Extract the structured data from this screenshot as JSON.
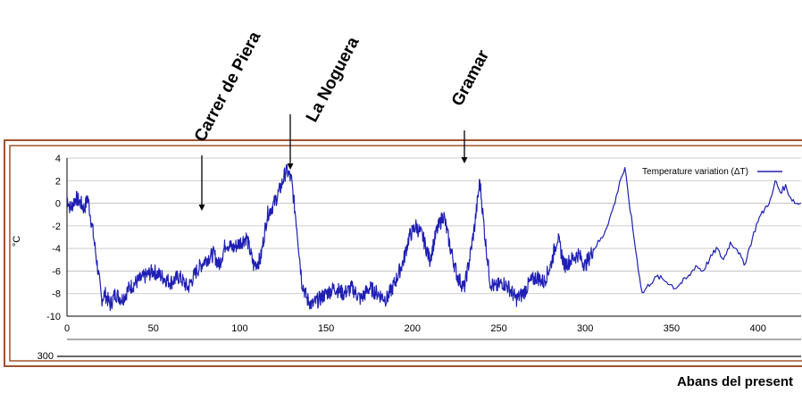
{
  "chart_data": {
    "type": "line",
    "ylabel": "°C",
    "xlabel": "Abans del present",
    "xlim": [
      0,
      425
    ],
    "ylim": [
      -10,
      4
    ],
    "xticks": [
      "0",
      "50",
      "100",
      "150",
      "200",
      "250",
      "300",
      "350",
      "400"
    ],
    "yticks": [
      "4",
      "2",
      "0",
      "-2",
      "-4",
      "-6",
      "-8",
      "-10"
    ],
    "second_panel_tick": "300",
    "grid": true,
    "legend_position": "top-right",
    "series": [
      {
        "name": "Temperature variation (ΔT)",
        "color": "#1f1fb4",
        "x": [
          0,
          2,
          5,
          8,
          10,
          12,
          15,
          18,
          20,
          22,
          25,
          28,
          32,
          36,
          40,
          45,
          50,
          55,
          60,
          65,
          70,
          75,
          80,
          85,
          88,
          92,
          96,
          100,
          104,
          108,
          112,
          116,
          120,
          124,
          127,
          130,
          133,
          136,
          139,
          142,
          146,
          150,
          155,
          160,
          165,
          170,
          175,
          180,
          185,
          190,
          195,
          198,
          202,
          206,
          210,
          214,
          218,
          222,
          226,
          230,
          233,
          236,
          239,
          242,
          245,
          248,
          252,
          256,
          260,
          264,
          268,
          272,
          276,
          280,
          284,
          288,
          292,
          296,
          300,
          305,
          310,
          315,
          318,
          320,
          323,
          326,
          330,
          333,
          338,
          342,
          348,
          352,
          356,
          360,
          364,
          368,
          372,
          376,
          380,
          384,
          388,
          392,
          396,
          400,
          404,
          408,
          410,
          413,
          416,
          419,
          422,
          425
        ],
        "y": [
          0.5,
          -0.5,
          0.5,
          0.0,
          -0.5,
          0.5,
          -2.5,
          -6.0,
          -8.5,
          -8.0,
          -9.0,
          -8.0,
          -8.5,
          -7.5,
          -7.0,
          -6.5,
          -6.0,
          -6.5,
          -7.0,
          -6.5,
          -7.5,
          -6.0,
          -5.0,
          -4.5,
          -5.5,
          -3.5,
          -4.0,
          -3.5,
          -3.0,
          -5.5,
          -5.0,
          -1.0,
          0.0,
          1.5,
          3.0,
          2.0,
          -2.0,
          -7.0,
          -8.5,
          -9.0,
          -8.5,
          -8.0,
          -7.5,
          -8.0,
          -7.5,
          -8.5,
          -7.5,
          -8.0,
          -8.5,
          -7.0,
          -5.0,
          -3.0,
          -2.0,
          -3.0,
          -5.0,
          -2.5,
          -1.0,
          -4.0,
          -6.5,
          -7.5,
          -5.0,
          -2.0,
          2.0,
          -3.0,
          -7.0,
          -7.5,
          -7.0,
          -7.5,
          -8.5,
          -8.0,
          -7.0,
          -6.5,
          -7.0,
          -5.5,
          -3.0,
          -5.5,
          -5.0,
          -4.5,
          -5.5,
          -4.0,
          -3.0,
          -1.0,
          0.5,
          2.0,
          3.0,
          -0.5,
          -5.0,
          -8.0,
          -7.0,
          -6.5,
          -7.0,
          -7.5,
          -7.0,
          -6.5,
          -5.5,
          -6.0,
          -5.0,
          -4.0,
          -5.0,
          -3.5,
          -4.0,
          -5.5,
          -3.5,
          -1.5,
          -0.5,
          0.5,
          2.0,
          1.0,
          1.5,
          0.5,
          0.0,
          0.0
        ]
      }
    ],
    "annotations": [
      {
        "label": "Carrer de Piera",
        "x": 80
      },
      {
        "label": "La Noguera",
        "x": 130
      },
      {
        "label": "Gramar",
        "x": 232
      }
    ]
  }
}
